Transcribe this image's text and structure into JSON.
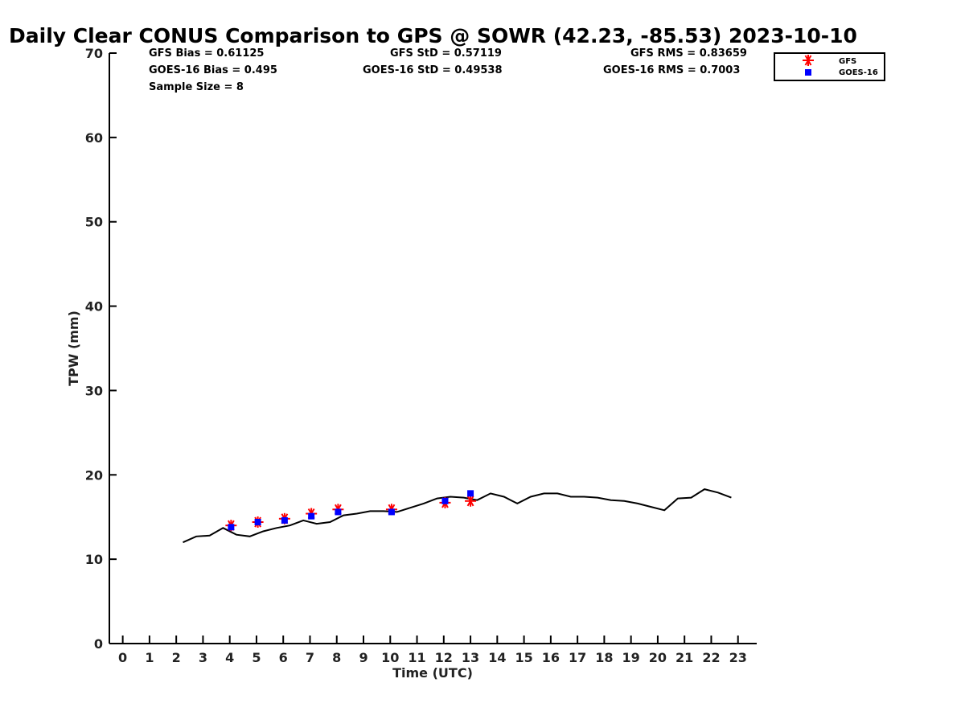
{
  "stats": {
    "gfs_bias": "GFS Bias = 0.61125",
    "goes_bias": "GOES-16 Bias = 0.495",
    "sample_size": "Sample Size = 8",
    "gfs_std": "GFS StD = 0.57119",
    "goes_std": "GOES-16 StD = 0.49538",
    "gfs_rms": "GFS RMS = 0.83659",
    "goes_rms": "GOES-16 RMS = 0.7003"
  },
  "chart_data": {
    "type": "line",
    "title": "Daily Clear CONUS Comparison to GPS @ SOWR (42.23, -85.53) 2023-10-10",
    "xlabel": "Time (UTC)",
    "ylabel": "TPW (mm)",
    "xlim": [
      -0.5,
      23.7
    ],
    "ylim": [
      0,
      70
    ],
    "xticks": [
      0,
      1,
      2,
      3,
      4,
      5,
      6,
      7,
      8,
      9,
      10,
      11,
      12,
      13,
      14,
      15,
      16,
      17,
      18,
      19,
      20,
      21,
      22,
      23
    ],
    "yticks": [
      0,
      10,
      20,
      30,
      40,
      50,
      60,
      70
    ],
    "colors": {
      "gps": "#000000",
      "gfs": "#ff0000",
      "goes": "#0000ff"
    },
    "series": [
      {
        "name": "GPS",
        "kind": "line",
        "x": [
          2.25,
          2.75,
          3.25,
          3.75,
          4.25,
          4.75,
          5.25,
          5.75,
          6.25,
          6.75,
          7.25,
          7.75,
          8.25,
          8.75,
          9.25,
          9.75,
          10.25,
          10.75,
          11.25,
          11.75,
          12.25,
          12.75,
          13.25,
          13.75,
          14.25,
          14.75,
          15.25,
          15.75,
          16.25,
          16.75,
          17.25,
          17.75,
          18.25,
          18.75,
          19.25,
          19.75,
          20.25,
          20.75,
          21.25,
          21.75,
          22.25,
          22.75
        ],
        "values": [
          12.0,
          12.7,
          12.8,
          13.7,
          12.9,
          12.7,
          13.3,
          13.7,
          14.0,
          14.6,
          14.2,
          14.4,
          15.2,
          15.4,
          15.7,
          15.7,
          15.6,
          16.1,
          16.6,
          17.2,
          17.4,
          17.3,
          17.0,
          17.8,
          17.4,
          16.6,
          17.4,
          17.8,
          17.8,
          17.4,
          17.4,
          17.3,
          17.0,
          16.9,
          16.6,
          16.2,
          15.8,
          17.2,
          17.3,
          18.3,
          17.9,
          17.3
        ]
      },
      {
        "name": "GFS",
        "kind": "marker",
        "marker": "asterisk",
        "x": [
          4.05,
          5.05,
          6.05,
          7.05,
          8.05,
          10.05,
          12.05,
          13.0
        ],
        "values": [
          14.0,
          14.4,
          14.8,
          15.4,
          15.9,
          15.9,
          16.7,
          16.9
        ]
      },
      {
        "name": "GOES-16",
        "kind": "marker",
        "marker": "square",
        "x": [
          4.05,
          5.05,
          6.05,
          7.05,
          8.05,
          10.05,
          12.05,
          13.0
        ],
        "values": [
          13.8,
          14.4,
          14.6,
          15.1,
          15.6,
          15.6,
          16.9,
          17.8
        ]
      }
    ],
    "legend": {
      "position": "top-right",
      "entries": [
        "GFS",
        "GOES-16"
      ]
    }
  }
}
